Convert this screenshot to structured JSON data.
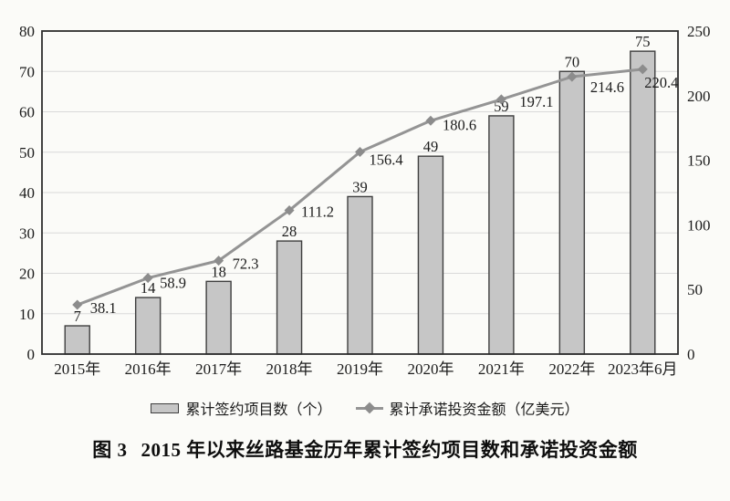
{
  "chart_data": {
    "type": "combo-bar-line",
    "categories": [
      "2015年",
      "2016年",
      "2017年",
      "2018年",
      "2019年",
      "2020年",
      "2021年",
      "2022年",
      "2023年6月"
    ],
    "series": [
      {
        "name": "累计签约项目数（个）",
        "type": "bar",
        "axis": "left",
        "values": [
          7,
          14,
          18,
          28,
          39,
          49,
          59,
          70,
          75
        ]
      },
      {
        "name": "累计承诺投资金额（亿美元）",
        "type": "line",
        "axis": "right",
        "values": [
          38.1,
          58.9,
          72.3,
          111.2,
          156.4,
          180.6,
          197.1,
          214.6,
          220.4
        ]
      }
    ],
    "left_axis": {
      "min": 0,
      "max": 80,
      "ticks": [
        0,
        10,
        20,
        30,
        40,
        50,
        60,
        70,
        80
      ]
    },
    "right_axis": {
      "min": 0,
      "max": 250,
      "ticks": [
        0,
        50,
        100,
        150,
        200,
        250
      ]
    },
    "grid": true,
    "data_labels": true,
    "legend_position": "bottom"
  },
  "caption": {
    "prefix": "图 3",
    "text": "2015 年以来丝路基金历年累计签约项目数和承诺投资金额"
  },
  "colors": {
    "background": "#fbfbf8",
    "bar_fill": "#c6c6c6",
    "bar_border": "#3f3f3f",
    "line": "#949494",
    "marker": "#8c8c8c",
    "grid": "#d9d9d9",
    "axis_border": "#2d2d2d",
    "text": "#1c1c1c"
  }
}
